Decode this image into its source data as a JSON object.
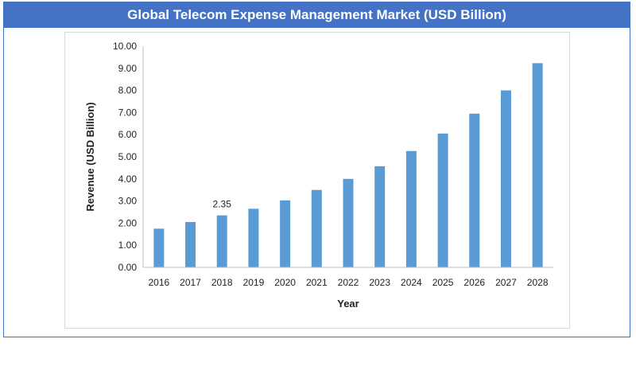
{
  "title": "Global Telecom Expense Management Market (USD Billion)",
  "colors": {
    "header": "#4472c4",
    "bar": "#5b9bd5"
  },
  "chart_data": {
    "type": "bar",
    "categories": [
      "2016",
      "2017",
      "2018",
      "2019",
      "2020",
      "2021",
      "2022",
      "2023",
      "2024",
      "2025",
      "2026",
      "2027",
      "2028"
    ],
    "values": [
      1.75,
      2.05,
      2.35,
      2.65,
      3.03,
      3.5,
      4.0,
      4.57,
      5.26,
      6.05,
      6.95,
      8.0,
      9.23
    ],
    "data_labels": [
      {
        "category": "2018",
        "text": "2.35"
      }
    ],
    "title": "Global Telecom Expense Management Market (USD Billion)",
    "xlabel": "Year",
    "ylabel": "Revenue  (USD Billion)",
    "ylim": [
      0,
      10
    ],
    "yticks": [
      "0.00",
      "1.00",
      "2.00",
      "3.00",
      "4.00",
      "5.00",
      "6.00",
      "7.00",
      "8.00",
      "9.00",
      "10.00"
    ],
    "grid": false,
    "legend": "none"
  }
}
